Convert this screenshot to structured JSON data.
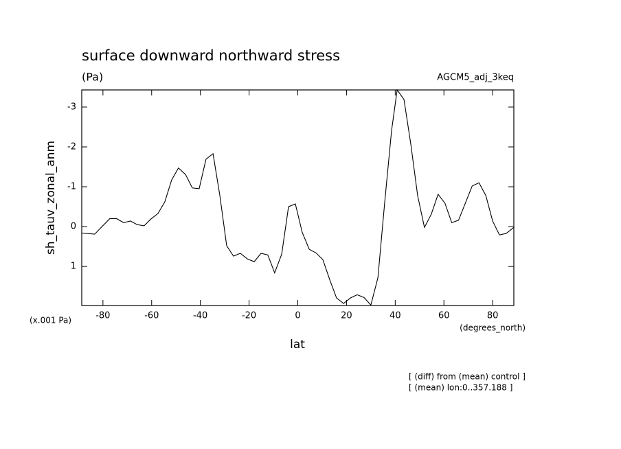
{
  "chart_data": {
    "type": "line",
    "title": "surface downward northward stress",
    "subtitle": "(Pa)",
    "run_label": "AGCM5_adj_3keq",
    "y_label": "sh_tauv_zonal_anm",
    "y_unit": "(x.001 Pa)",
    "x_unit": "(degrees_north)",
    "x_label": "lat",
    "notes": [
      "[ (diff) from (mean) control ]",
      "[ (mean) lon:0..357.188 ]"
    ],
    "xlim": [
      -88.7,
      88.7
    ],
    "ylim": [
      1.98,
      -3.43
    ],
    "xticks": [
      -80,
      -60,
      -40,
      -20,
      0,
      20,
      40,
      60,
      80
    ],
    "yticks": [
      -3,
      -2,
      -1,
      0,
      1
    ],
    "color": "#000000",
    "x": [
      -88.7,
      -83.4,
      -77.2,
      -74.4,
      -71.5,
      -68.7,
      -65.9,
      -63.1,
      -60.3,
      -57.4,
      -54.6,
      -51.8,
      -49.0,
      -46.1,
      -43.3,
      -40.5,
      -37.7,
      -34.8,
      -32.0,
      -29.2,
      -26.4,
      -23.6,
      -20.7,
      -17.9,
      -15.1,
      -12.3,
      -9.5,
      -6.6,
      -3.8,
      -1.0,
      1.8,
      4.7,
      7.5,
      10.3,
      13.1,
      15.9,
      18.8,
      21.6,
      24.4,
      27.2,
      30.0,
      32.9,
      35.7,
      38.5,
      40.8,
      43.6,
      46.4,
      49.2,
      52.0,
      54.8,
      57.6,
      60.4,
      63.2,
      66.0,
      68.8,
      71.6,
      74.4,
      77.2,
      80.0,
      82.8,
      85.6,
      88.7
    ],
    "values": [
      0.16,
      0.19,
      -0.2,
      -0.2,
      -0.1,
      -0.14,
      -0.05,
      -0.02,
      -0.19,
      -0.33,
      -0.62,
      -1.17,
      -1.47,
      -1.31,
      -0.97,
      -0.95,
      -1.69,
      -1.83,
      -0.78,
      0.48,
      0.74,
      0.67,
      0.81,
      0.88,
      0.67,
      0.71,
      1.16,
      0.69,
      -0.5,
      -0.57,
      0.14,
      0.57,
      0.66,
      0.83,
      1.33,
      1.79,
      1.93,
      1.79,
      1.71,
      1.78,
      1.97,
      1.28,
      -0.62,
      -2.41,
      -3.43,
      -3.19,
      -2.07,
      -0.78,
      0.02,
      -0.31,
      -0.81,
      -0.59,
      -0.1,
      -0.16,
      -0.59,
      -1.02,
      -1.1,
      -0.78,
      -0.14,
      0.21,
      0.17,
      0.02
    ]
  }
}
